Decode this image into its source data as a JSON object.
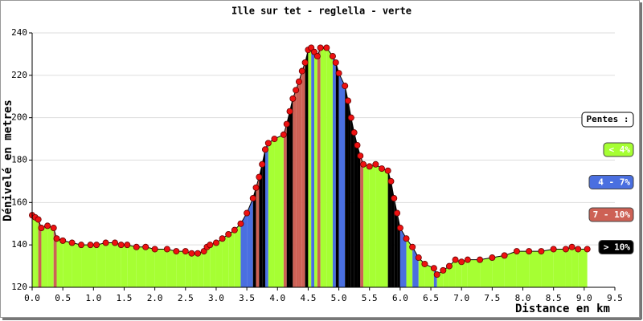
{
  "chart_data": {
    "type": "area-profile",
    "title": "Ille sur tet - reglella - verte",
    "x_label": "Distance en km",
    "y_label": "Dénivelé en metres",
    "xlim": [
      0,
      9.5
    ],
    "ylim": [
      120,
      240
    ],
    "xticks": [
      {
        "value": 0,
        "label": "0.0"
      },
      0.5,
      {
        "value": 1,
        "label": "1.0"
      },
      1.5,
      {
        "value": 2,
        "label": "2.0"
      },
      2.5,
      {
        "value": 3,
        "label": "3.0"
      },
      3.5,
      {
        "value": 4,
        "label": "4.0"
      },
      4.5,
      {
        "value": 5,
        "label": "5.0"
      },
      5.5,
      {
        "value": 6,
        "label": "6.0"
      },
      6.5,
      {
        "value": 7,
        "label": "7.0"
      },
      7.5,
      {
        "value": 8,
        "label": "8.0"
      },
      8.5,
      {
        "value": 9,
        "label": "9.0"
      },
      9.5
    ],
    "yticks": [
      120,
      140,
      160,
      180,
      200,
      220,
      240
    ],
    "grid": true,
    "x": [
      0,
      0.05,
      0.1,
      0.15,
      0.25,
      0.35,
      0.4,
      0.5,
      0.65,
      0.8,
      0.95,
      1.05,
      1.2,
      1.35,
      1.45,
      1.55,
      1.7,
      1.85,
      2.0,
      2.2,
      2.35,
      2.5,
      2.6,
      2.7,
      2.8,
      2.85,
      2.9,
      3.0,
      3.1,
      3.2,
      3.3,
      3.4,
      3.5,
      3.6,
      3.65,
      3.7,
      3.75,
      3.8,
      3.85,
      3.95,
      4.1,
      4.15,
      4.2,
      4.25,
      4.3,
      4.35,
      4.4,
      4.45,
      4.5,
      4.55,
      4.6,
      4.65,
      4.7,
      4.8,
      4.9,
      4.95,
      5.0,
      5.1,
      5.15,
      5.2,
      5.25,
      5.3,
      5.35,
      5.4,
      5.5,
      5.6,
      5.7,
      5.8,
      5.85,
      5.9,
      5.95,
      6.0,
      6.1,
      6.2,
      6.3,
      6.4,
      6.55,
      6.6,
      6.7,
      6.8,
      6.9,
      7.0,
      7.1,
      7.3,
      7.5,
      7.7,
      7.9,
      8.1,
      8.3,
      8.5,
      8.7,
      8.8,
      8.9,
      9.05
    ],
    "series": [
      {
        "color": "#ee1111",
        "values": [
          154,
          153,
          152,
          148,
          149,
          148,
          143,
          142,
          141,
          140,
          140,
          140,
          141,
          141,
          140,
          140,
          139,
          139,
          138,
          138,
          137,
          137,
          136,
          136,
          137,
          139,
          140,
          141,
          143,
          145,
          147,
          150,
          155,
          162,
          167,
          172,
          178,
          185,
          188,
          190,
          192,
          197,
          203,
          209,
          213,
          217,
          222,
          226,
          232,
          233,
          231,
          229,
          233,
          233,
          229,
          226,
          221,
          215,
          208,
          200,
          193,
          187,
          182,
          178,
          177,
          178,
          176,
          175,
          170,
          162,
          155,
          148,
          143,
          139,
          134,
          131,
          129,
          126,
          128,
          130,
          133,
          132,
          133,
          133,
          134,
          135,
          137,
          137,
          137,
          138,
          138,
          139,
          138,
          138
        ]
      }
    ],
    "legend": {
      "title": "Pentes :",
      "items": [
        {
          "label": "< 4%",
          "color": "#a6ff33",
          "max": 4
        },
        {
          "label": "4 - 7%",
          "color": "#4a6fe0",
          "max": 7
        },
        {
          "label": "7 - 10%",
          "color": "#cd6155",
          "max": 10
        },
        {
          "label": "> 10%",
          "color": "#000000",
          "max": null
        }
      ]
    }
  }
}
